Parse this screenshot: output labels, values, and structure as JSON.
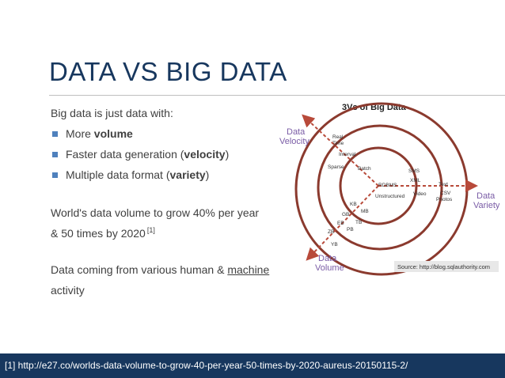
{
  "slide": {
    "title": "DATA VS BIG DATA"
  },
  "body": {
    "intro": "Big data is just data with:",
    "bullets": [
      {
        "prefix": "More ",
        "bold": "volume",
        "suffix": ""
      },
      {
        "prefix": "Faster data generation (",
        "bold": "velocity",
        "suffix": ")"
      },
      {
        "prefix": "Multiple data format (",
        "bold": "variety",
        "suffix": ")"
      }
    ],
    "stat_line1": "World's data volume to grow 40% per year",
    "stat_line2": "& 50 times by 2020",
    "stat_ref": "[1]",
    "activity_line1_prefix": "Data coming from various human & ",
    "activity_line1_link": "machine",
    "activity_line2": "activity"
  },
  "figure": {
    "title": "3Vs of Big Data",
    "velocity_label_1": "Data",
    "velocity_label_2": "Velocity",
    "variety_label_1": "Data",
    "variety_label_2": "Variety",
    "volume_label_1": "Data",
    "volume_label_2": "Volume",
    "velocity_items": [
      "Real",
      "Time",
      "Interval",
      "Sparse",
      "Batch"
    ],
    "variety_items": [
      "SMS",
      "XML",
      "RDBMS",
      "Text",
      "Unstructured",
      "Video",
      "CSV",
      "Photos"
    ],
    "volume_items": [
      "KB",
      "MB",
      "GB",
      "TB",
      "EB",
      "PB",
      "ZB",
      "YB"
    ],
    "source": "Source: http://blog.sqlauthority.com",
    "colors": {
      "ring": "#8b3a2e",
      "arrow": "#b84a3a",
      "axis_label": "#7a5ca6",
      "source_bg": "#e8e8e8"
    }
  },
  "footer": {
    "citation": "[1] http://e27.co/worlds-data-volume-to-grow-40-per-year-50-times-by-2020-aureus-20150115-2/"
  },
  "colors": {
    "title": "#17375e",
    "bullet": "#4f81bd",
    "footer_bg": "#17375e",
    "body_text": "#404040"
  }
}
